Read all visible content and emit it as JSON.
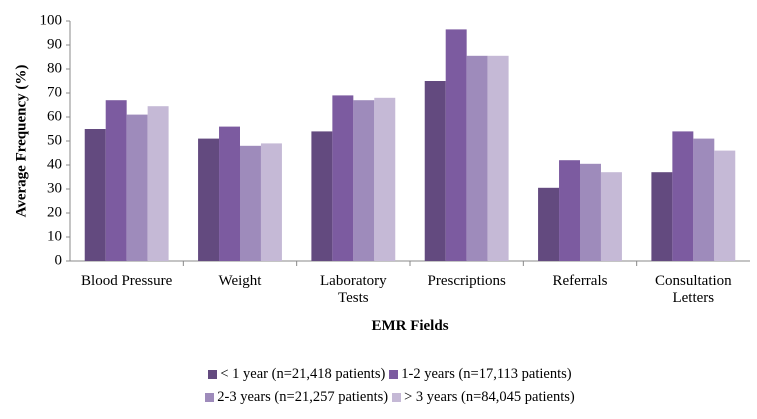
{
  "chart_data": {
    "type": "bar",
    "y_label": "Average Frequency (%)",
    "x_label": "EMR Fields",
    "categories": [
      "Blood Pressure",
      "Weight",
      "Laboratory\nTests",
      "Prescriptions",
      "Referrals",
      "Consultation\nLetters"
    ],
    "series": [
      {
        "name": "< 1 year (n=21,418 patients)",
        "color": "#634a7f",
        "values": [
          55,
          51,
          54,
          75,
          30.5,
          37
        ]
      },
      {
        "name": "1-2 years (n=17,113 patients)",
        "color": "#7c5ba0",
        "values": [
          67,
          56,
          69,
          96.5,
          42,
          54
        ]
      },
      {
        "name": "2-3 years (n=21,257 patients)",
        "color": "#9e8bbb",
        "values": [
          61,
          48,
          67,
          85.5,
          40.5,
          51
        ]
      },
      {
        "name": "> 3 years (n=84,045 patients)",
        "color": "#c5b9d6",
        "values": [
          64.5,
          49,
          68,
          85.5,
          37,
          46
        ]
      }
    ],
    "ylim": [
      0,
      100
    ],
    "yticks": [
      0,
      10,
      20,
      30,
      40,
      50,
      60,
      70,
      80,
      90,
      100
    ],
    "grid": false
  }
}
